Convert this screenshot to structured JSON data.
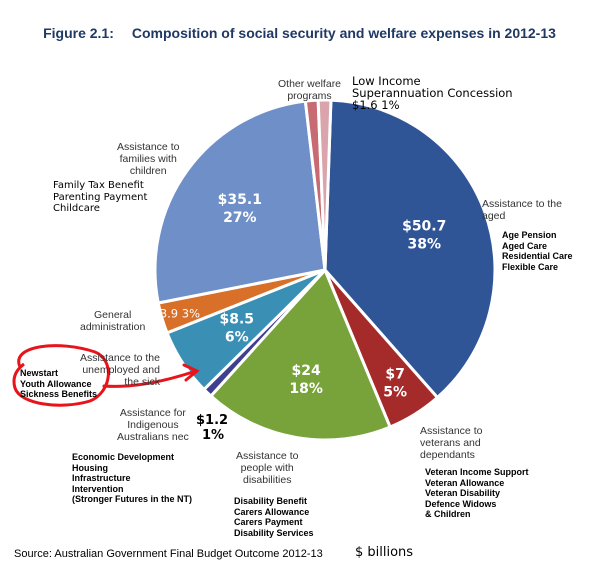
{
  "chart_data": {
    "type": "pie",
    "figure_label": "Figure 2.1:",
    "title": "Composition of social security and welfare expenses in 2012-13",
    "source": "Source: Australian Government Final Budget Outcome 2012-13",
    "units": "$ billions",
    "slices": [
      {
        "label": "Assistance to the aged",
        "amount": "$50.7",
        "value": 50.7,
        "percent": "38%",
        "color": "#2f5597",
        "details": "Age Pension\nAged Care\nResidential Care\nFlexible Care"
      },
      {
        "label": "Assistance to veterans and dependants",
        "amount": "$7",
        "value": 7,
        "percent": "5%",
        "color": "#a52a2a",
        "details": "Veteran Income Support\nVeteran Allowance\nVeteran Disability\nDefence Widows\n& Children"
      },
      {
        "label": "Assistance to people with disabilities",
        "amount": "$24",
        "value": 24,
        "percent": "18%",
        "color": "#77a33a",
        "details": "Disability Benefit\nCarers Allowance\nCarers Payment\nDisability Services"
      },
      {
        "label": "Assistance for Indigenous Australians nec",
        "amount": "$1.2",
        "value": 1.2,
        "percent": "1%",
        "color": "#3f3f8f",
        "details": "Economic Development\nHousing\nInfrastructure\nIntervention\n(Stronger Futures in the NT)"
      },
      {
        "label": "Assistance to the unemployed and the sick",
        "amount": "$8.5",
        "value": 8.5,
        "percent": "6%",
        "color": "#3a8fb5",
        "details": "Newstart\nYouth Allowance\nSickness Benefits"
      },
      {
        "label": "General administration",
        "amount": "$3.9",
        "value": 3.9,
        "percent": "3%",
        "color": "#d8702a",
        "details": ""
      },
      {
        "label": "Assistance to families with children",
        "amount": "$35.1",
        "value": 35.1,
        "percent": "27%",
        "color": "#6f8fc8",
        "details": "Family Tax Benefit\nParenting Payment\nChildcare"
      },
      {
        "label": "Other welfare programs",
        "amount": "",
        "value": 1.6,
        "percent": "",
        "color": "#c76a72",
        "details": ""
      },
      {
        "label": "Low Income Superannuation Concession",
        "amount": "$1.6",
        "value": 1.6,
        "percent": "1%",
        "color": "#d9a4ab",
        "details": ""
      }
    ],
    "label_text": {
      "aged": "Assistance to the\naged",
      "veterans": "Assistance to\nveterans and\ndependants",
      "disabilities": "Assistance to\npeople with\ndisabilities",
      "indigenous": "Assistance for\nIndigenous\nAustralians nec",
      "unemployed": "Assistance to the\nunemployed and\nthe sick",
      "general": "General\nadministration",
      "families": "Assistance to\nfamilies with\nchildren",
      "other": "Other welfare\nprograms",
      "lowincome": "Low Income\nSuperannuation Concession\n$1.6 1%"
    },
    "annotation": {
      "color": "#e8141b"
    }
  }
}
